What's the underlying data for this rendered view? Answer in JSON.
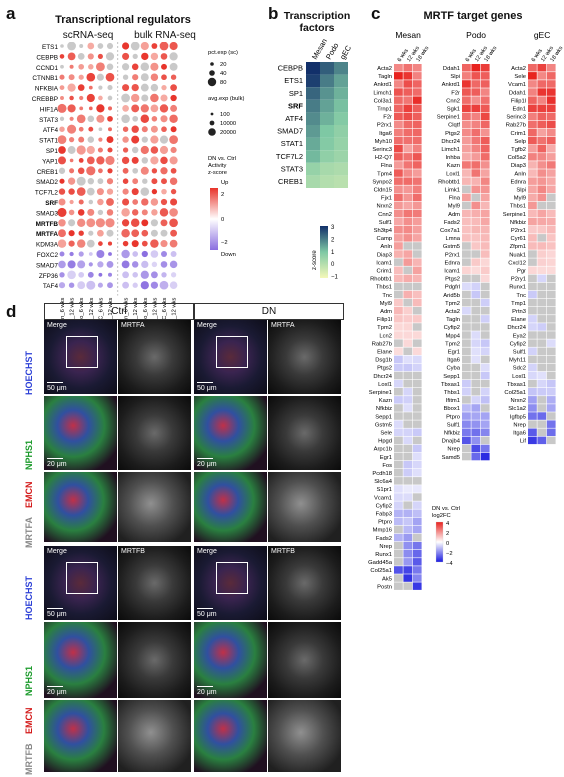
{
  "panels": {
    "a": {
      "letter": "a",
      "title": "Transcriptional regulators",
      "sub1": "scRNA-seq",
      "sub2": "bulk RNA-seq",
      "genes": [
        "ETS1",
        "CEBPB",
        "CCND1",
        "CTNNB1",
        "NFKBIA",
        "CREBBP",
        "HIF1A",
        "STAT3",
        "ATF4",
        "STAT1",
        "SP1",
        "YAP1",
        "CREB1",
        "SMAD2",
        "TCF7L2",
        "SRF",
        "SMAD3",
        "MRTFB",
        "MRTFA",
        "KDM3A",
        "FOXC2",
        "SMAD7",
        "ZFP36",
        "TAF4"
      ],
      "bold": [
        "SRF",
        "MRTFB",
        "MRTFA"
      ],
      "columns": [
        "Mesan_6 wks",
        "Mesan_12 wks",
        "Podo_6 wks",
        "Podo_12 wks",
        "gEC_6 wks",
        "gEC_12 wks",
        "Mesan_6 wks",
        "Mesan_12 wks",
        "Podo_6 wks",
        "Podo_12 wks",
        "gEC_6 wks",
        "gEC_12 wks"
      ],
      "legend": {
        "pct_title": "pct.exp (sc)",
        "pct": [
          "20",
          "40",
          "80"
        ],
        "avg_title": "avg.exp (bulk)",
        "avg": [
          "100",
          "10000",
          "20000"
        ],
        "act_title": "DN vs. Ctrl Activity z-score",
        "up": "Up",
        "v2": "2",
        "v0": "0",
        "vm2": "−2",
        "down": "Down"
      }
    },
    "b": {
      "letter": "b",
      "title": "Transcription factors",
      "columns": [
        "Mesan",
        "Podo",
        "gEC"
      ],
      "genes": [
        "CEBPB",
        "ETS1",
        "SP1",
        "SRF",
        "ATF4",
        "SMAD7",
        "STAT1",
        "TCF7L2",
        "STAT3",
        "CREB1"
      ],
      "bold": [
        "SRF"
      ],
      "legend_title": "z-score",
      "ticks": [
        "3",
        "2",
        "1",
        "0",
        "−1"
      ],
      "values": [
        [
          3.2,
          2.4,
          1.9
        ],
        [
          2.8,
          2.0,
          1.5
        ],
        [
          2.3,
          1.7,
          1.3
        ],
        [
          2.0,
          1.5,
          1.1
        ],
        [
          1.8,
          1.3,
          0.9
        ],
        [
          1.6,
          1.0,
          0.7
        ],
        [
          1.4,
          0.9,
          0.6
        ],
        [
          1.2,
          0.7,
          0.5
        ],
        [
          0.6,
          0.3,
          0.2
        ],
        [
          0.3,
          0.1,
          0.0
        ]
      ]
    },
    "c": {
      "letter": "c",
      "title": "MRTF target genes",
      "sub": [
        "Mesan",
        "Podo",
        "gEC"
      ],
      "weeks": [
        "6 wks",
        "12 wks",
        "18 wks"
      ],
      "mesan": [
        "Acta2",
        "Tagln",
        "Ankrd1",
        "Limch1",
        "Col3a1",
        "Trnp1",
        "F2r",
        "P2rx1",
        "Itga6",
        "Myh10",
        "Serinc3",
        "H2-Q7",
        "Flna",
        "Tpm4",
        "Synpo2",
        "Cldn15",
        "Fjx1",
        "Nrxn2",
        "Cnn2",
        "Sulf1",
        "Sh3tp4",
        "Camp",
        "Anln",
        "Diap3",
        "Icam1",
        "Crim1",
        "Rhobtb1",
        "Thbs1",
        "Tnc",
        "Myl9",
        "Adm",
        "Filip1l",
        "Tpm2",
        "Lcn2",
        "Rab27b",
        "Elane",
        "Dsg1b",
        "Ptgs2",
        "Dhcr24",
        "Loxl1",
        "Serpine1",
        "Kazn",
        "Nfkbiz",
        "Sepp1",
        "Gstm5",
        "Sele",
        "Hpgd",
        "Arpc1b",
        "Egr1",
        "Fos",
        "Pcdh18",
        "Slc6a4",
        "S1pr1",
        "Vcam1",
        "Cyfip2",
        "Fabp3",
        "Ptpro",
        "Mmp16",
        "Fads2",
        "Nrep",
        "Runx1",
        "Gadd45a",
        "Col25a1",
        "Ak5",
        "Postn"
      ],
      "podo": [
        "Ddah1",
        "Slpi",
        "Ankrd1",
        "F2r",
        "Cnn2",
        "Sgk1",
        "Serpine1",
        "Clqtf",
        "Ptgs2",
        "Dhcr24",
        "Limch1",
        "Inhba",
        "Kazn",
        "Loxl1",
        "Rhobtb1",
        "Limk1",
        "Flna",
        "Myl9",
        "Adm",
        "Fads2",
        "Cox7a1",
        "Lmna",
        "Gstm5",
        "P2rx1",
        "Ednra",
        "Icam1",
        "Ptgs2",
        "Pdgfrl",
        "Arid5b",
        "Tpm2",
        "Acta2",
        "Tagln",
        "Cyfip2",
        "Mpp4",
        "Tpm2",
        "Egr1",
        "Itga6",
        "Cyba",
        "Sepp1",
        "Tbxas1",
        "Thbs1",
        "Ifitm1",
        "Bbox1",
        "Ptpro",
        "Sulf1",
        "Nfkbiz",
        "Dnajb4",
        "Nrep",
        "Samd5"
      ],
      "gec": [
        "Acta2",
        "Sele",
        "Vcam1",
        "Ddah1",
        "Filip1l",
        "Edn1",
        "Serinc3",
        "Rab27b",
        "Crim1",
        "Selp",
        "Tgfb2",
        "Col5a2",
        "Diap3",
        "Anln",
        "Ednra",
        "Slpi",
        "Myl9",
        "Thbs1",
        "Serpine1",
        "Nfkbiz",
        "P2rx1",
        "Cyr61",
        "Zfpm1",
        "Nuak1",
        "Cxcl12",
        "Pgr",
        "P2ry1",
        "Runx1",
        "Tnc",
        "Tmp1",
        "Prtn3",
        "Elane",
        "Dhcr24",
        "Eya2",
        "Cyfip2",
        "Sulf1",
        "Myh11",
        "Sdc2",
        "Loxl1",
        "Tbxas1",
        "Col25a1",
        "Nrxn2",
        "Slc1a2",
        "Igfbp5",
        "Nrep",
        "Itga6",
        "Lif"
      ],
      "legend_title": "DN vs. Ctrl log2FC",
      "ticks": [
        "4",
        "2",
        "0",
        "−2",
        "−4"
      ]
    },
    "d": {
      "letter": "d",
      "ctrl": "Ctrl",
      "dn": "DN",
      "merge": "Merge",
      "mrtfa": "MRTFA",
      "mrtfb": "MRTFB",
      "scale50": "50 μm",
      "scale20": "20 μm",
      "side_hoechst": "HOECHST",
      "side_emcn": "EMCN",
      "side_nphs1": "NPHS1",
      "side_mrtfa": "MRTFA",
      "side_mrtfb": "MRTFB"
    }
  },
  "colors": {
    "up": "#e8332a",
    "down": "#8a6ee0",
    "bold_accent": "#111111"
  }
}
